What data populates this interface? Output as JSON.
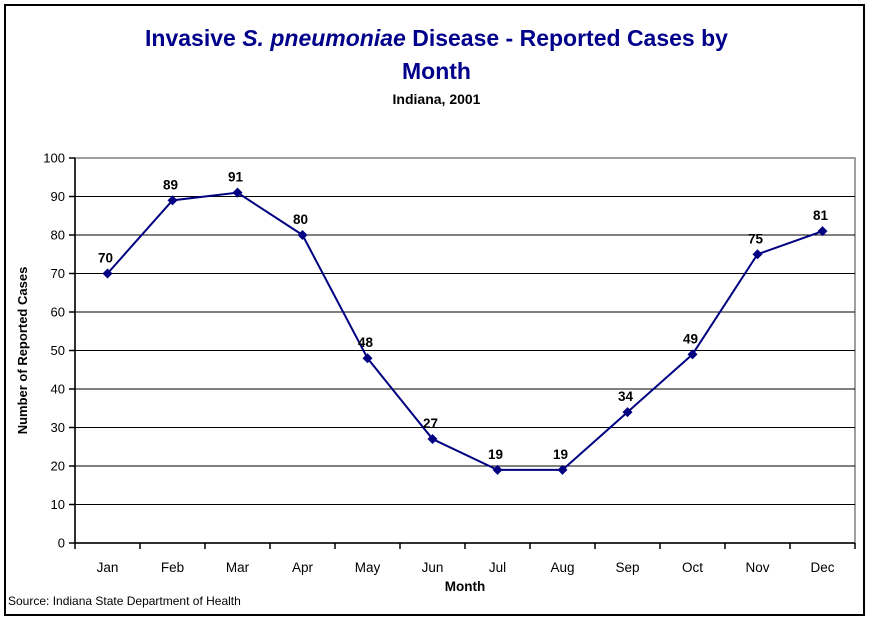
{
  "title": {
    "line1_prefix": "Invasive ",
    "line1_italic": "S. pneumoniae",
    "line1_suffix": " Disease - Reported Cases by",
    "line2": "Month",
    "color": "#00008B"
  },
  "subtitle": "Indiana, 2001",
  "source": "Source: Indiana State Department of Health",
  "chart_data": {
    "type": "line",
    "categories": [
      "Jan",
      "Feb",
      "Mar",
      "Apr",
      "May",
      "Jun",
      "Jul",
      "Aug",
      "Sep",
      "Oct",
      "Nov",
      "Dec"
    ],
    "values": [
      70,
      89,
      91,
      80,
      48,
      27,
      19,
      19,
      34,
      49,
      75,
      81
    ],
    "title": "Invasive S. pneumoniae Disease - Reported Cases by Month",
    "subtitle": "Indiana, 2001",
    "xlabel": "Month",
    "ylabel": "Number of Reported Cases",
    "ylim": [
      0,
      100
    ],
    "ytick_step": 10,
    "grid": true,
    "legend": "none",
    "data_labels": true,
    "line_color": "#000080",
    "marker": "diamond",
    "marker_color": "#000080",
    "label_color": "#000000",
    "gridline_color": "#000000",
    "plot_border_color": "#808080",
    "axis_color": "#000000"
  }
}
